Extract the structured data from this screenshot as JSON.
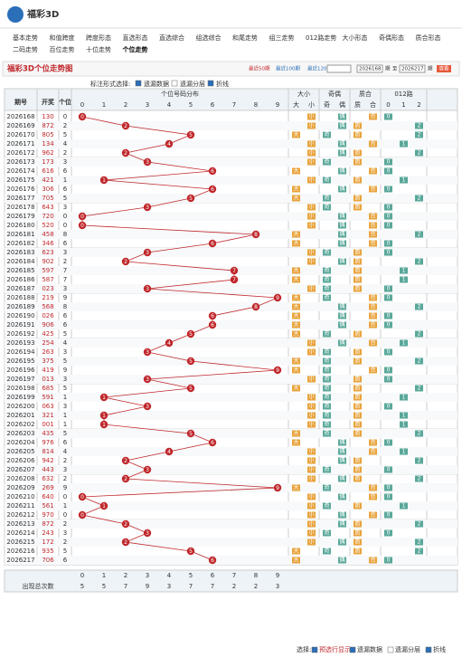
{
  "header": {
    "logo": "福彩3D"
  },
  "nav": {
    "row1": [
      "基本走势",
      "和值跨度",
      "跨度形态",
      "直选形态",
      "直选综合",
      "组选综合",
      "和尾走势",
      "组三走势",
      "012路走势",
      "大小形态",
      "奇偶形态",
      "质合形态"
    ],
    "row2": [
      "二码走势",
      "百位走势",
      "十位走势",
      "个位走势"
    ],
    "active": "个位走势"
  },
  "panel": {
    "title": "福彩3D个位走势图",
    "recent": [
      "最近50期",
      "最近100期",
      "最近120期"
    ],
    "from": "2026168",
    "period": "期",
    "to_word": "至",
    "to": "2026217",
    "button": "查看",
    "options_label": "标注形式选择:",
    "options": [
      "遗漏数据",
      "遗漏分层",
      "折线"
    ]
  },
  "table": {
    "headers": [
      "期号",
      "开奖",
      "个位"
    ],
    "grid_title": "个位号码分布",
    "digits": [
      0,
      1,
      2,
      3,
      4,
      5,
      6,
      7,
      8,
      9
    ],
    "groups": [
      {
        "title": "大小",
        "labels": [
          "大",
          "小"
        ]
      },
      {
        "title": "奇偶",
        "labels": [
          "奇",
          "偶"
        ]
      },
      {
        "title": "质合",
        "labels": [
          "质",
          "合"
        ]
      },
      {
        "title": "012路",
        "labels": [
          "0",
          "1",
          "2"
        ]
      }
    ],
    "rows": [
      {
        "issue": "2026168",
        "number": "130",
        "ones": 0
      },
      {
        "issue": "2026169",
        "number": "872",
        "ones": 2
      },
      {
        "issue": "2026170",
        "number": "805",
        "ones": 5
      },
      {
        "issue": "2026171",
        "number": "134",
        "ones": 4
      },
      {
        "issue": "2026172",
        "number": "962",
        "ones": 2
      },
      {
        "issue": "2026173",
        "number": "173",
        "ones": 3
      },
      {
        "issue": "2026174",
        "number": "616",
        "ones": 6
      },
      {
        "issue": "2026175",
        "number": "421",
        "ones": 1
      },
      {
        "issue": "2026176",
        "number": "306",
        "ones": 6
      },
      {
        "issue": "2026177",
        "number": "705",
        "ones": 5
      },
      {
        "issue": "2026178",
        "number": "643",
        "ones": 3
      },
      {
        "issue": "2026179",
        "number": "720",
        "ones": 0
      },
      {
        "issue": "2026180",
        "number": "520",
        "ones": 0
      },
      {
        "issue": "2026181",
        "number": "458",
        "ones": 8
      },
      {
        "issue": "2026182",
        "number": "346",
        "ones": 6
      },
      {
        "issue": "2026183",
        "number": "623",
        "ones": 3
      },
      {
        "issue": "2026184",
        "number": "902",
        "ones": 2
      },
      {
        "issue": "2026185",
        "number": "597",
        "ones": 7
      },
      {
        "issue": "2026186",
        "number": "587",
        "ones": 7
      },
      {
        "issue": "2026187",
        "number": "023",
        "ones": 3
      },
      {
        "issue": "2026188",
        "number": "219",
        "ones": 9
      },
      {
        "issue": "2026189",
        "number": "568",
        "ones": 8
      },
      {
        "issue": "2026190",
        "number": "026",
        "ones": 6
      },
      {
        "issue": "2026191",
        "number": "906",
        "ones": 6
      },
      {
        "issue": "2026192",
        "number": "425",
        "ones": 5
      },
      {
        "issue": "2026193",
        "number": "254",
        "ones": 4
      },
      {
        "issue": "2026194",
        "number": "263",
        "ones": 3
      },
      {
        "issue": "2026195",
        "number": "375",
        "ones": 5
      },
      {
        "issue": "2026196",
        "number": "419",
        "ones": 9
      },
      {
        "issue": "2026197",
        "number": "013",
        "ones": 3
      },
      {
        "issue": "2026198",
        "number": "685",
        "ones": 5
      },
      {
        "issue": "2026199",
        "number": "591",
        "ones": 1
      },
      {
        "issue": "2026200",
        "number": "063",
        "ones": 3
      },
      {
        "issue": "2026201",
        "number": "321",
        "ones": 1
      },
      {
        "issue": "2026202",
        "number": "001",
        "ones": 1
      },
      {
        "issue": "2026203",
        "number": "435",
        "ones": 5
      },
      {
        "issue": "2026204",
        "number": "976",
        "ones": 6
      },
      {
        "issue": "2026205",
        "number": "814",
        "ones": 4
      },
      {
        "issue": "2026206",
        "number": "942",
        "ones": 2
      },
      {
        "issue": "2026207",
        "number": "443",
        "ones": 3
      },
      {
        "issue": "2026208",
        "number": "632",
        "ones": 2
      },
      {
        "issue": "2026209",
        "number": "269",
        "ones": 9
      },
      {
        "issue": "2026210",
        "number": "640",
        "ones": 0
      },
      {
        "issue": "2026211",
        "number": "561",
        "ones": 1
      },
      {
        "issue": "2026212",
        "number": "970",
        "ones": 0
      },
      {
        "issue": "2026213",
        "number": "872",
        "ones": 2
      },
      {
        "issue": "2026214",
        "number": "243",
        "ones": 3
      },
      {
        "issue": "2026215",
        "number": "172",
        "ones": 2
      },
      {
        "issue": "2026216",
        "number": "935",
        "ones": 5
      },
      {
        "issue": "2026217",
        "number": "706",
        "ones": 6
      }
    ],
    "stats": {
      "label": "出现总次数",
      "values": [
        5,
        5,
        7,
        9,
        3,
        7,
        7,
        2,
        2,
        3
      ]
    }
  },
  "footer": {
    "label": "选择:",
    "options": [
      "预选行显示",
      "遗漏数据",
      "遗漏分层",
      "折线"
    ]
  }
}
